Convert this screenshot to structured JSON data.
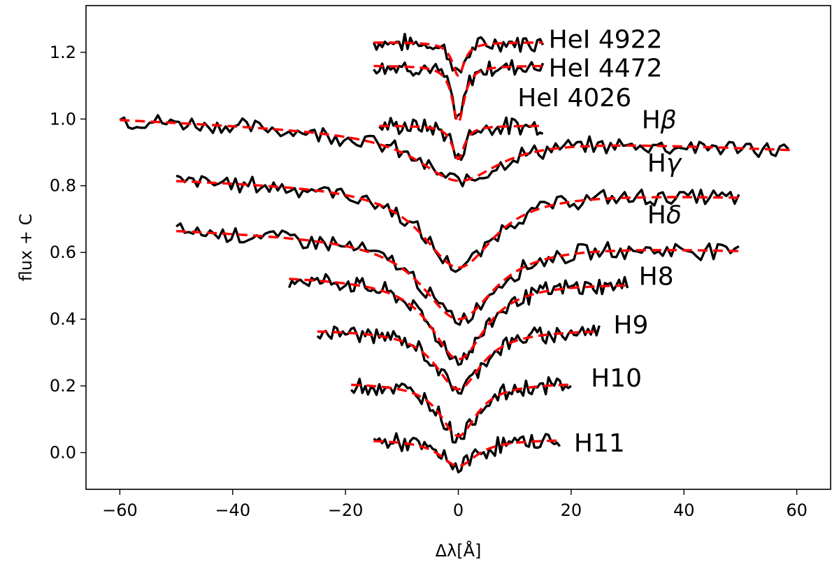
{
  "chart_data": {
    "type": "line",
    "title": "",
    "xlabel": "Δλ[Å]",
    "ylabel": "flux + C",
    "xlim": [
      -66,
      66
    ],
    "ylim": [
      -0.11,
      1.34
    ],
    "xticks": [
      -60,
      -40,
      -20,
      0,
      20,
      40,
      60
    ],
    "xtick_labels": [
      "−60",
      "−40",
      "−20",
      "0",
      "20",
      "40",
      "60"
    ],
    "yticks": [
      0.0,
      0.2,
      0.4,
      0.6,
      0.8,
      1.0,
      1.2
    ],
    "ytick_labels": [
      "0.0",
      "0.2",
      "0.4",
      "0.6",
      "0.8",
      "1.0",
      "1.2"
    ],
    "grid": false,
    "colors": {
      "observed": "#000000",
      "model": "#ff0000"
    },
    "line_styles": {
      "observed": "solid",
      "model": "dashed"
    },
    "series": [
      {
        "label": "HeI 4922",
        "xrange": [
          -15,
          15
        ],
        "continuum": 1.23,
        "depth": 0.1,
        "width": 1.3,
        "label_at": [
          16,
          1.24
        ]
      },
      {
        "label": "HeI 4472",
        "xrange": [
          -15,
          15
        ],
        "continuum": 1.16,
        "depth": 0.17,
        "width": 1.3,
        "label_at": [
          16,
          1.155
        ]
      },
      {
        "label": "HeI 4026",
        "xrange": [
          -14,
          15
        ],
        "continuum": 0.98,
        "depth": 0.1,
        "width": 1.3,
        "label_at": [
          10.5,
          1.065
        ]
      },
      {
        "label": "Hβ",
        "xrange": [
          -60,
          59
        ],
        "continuum": 1.0,
        "depth": 0.14,
        "width": 9.0,
        "tilt": -0.09,
        "label_at": [
          32.5,
          1.0
        ]
      },
      {
        "label": "Hγ",
        "xrange": [
          -50,
          50
        ],
        "continuum": 0.82,
        "depth": 0.24,
        "width": 8.0,
        "tilt": -0.05,
        "label_at": [
          33.5,
          0.87
        ]
      },
      {
        "label": "Hδ",
        "xrange": [
          -50,
          50
        ],
        "continuum": 0.67,
        "depth": 0.24,
        "width": 8.0,
        "tilt": -0.06,
        "label_at": [
          33.5,
          0.715
        ]
      },
      {
        "label": "H8",
        "xrange": [
          -30,
          30
        ],
        "continuum": 0.53,
        "depth": 0.24,
        "width": 6.0,
        "tilt": -0.02,
        "label_at": [
          32,
          0.53
        ]
      },
      {
        "label": "H9",
        "xrange": [
          -25,
          25
        ],
        "continuum": 0.37,
        "depth": 0.18,
        "width": 5.0,
        "label_at": [
          27.5,
          0.385
        ]
      },
      {
        "label": "H10",
        "xrange": [
          -19,
          20
        ],
        "continuum": 0.21,
        "depth": 0.16,
        "width": 4.0,
        "label_at": [
          23.5,
          0.225
        ]
      },
      {
        "label": "H11",
        "xrange": [
          -15,
          18
        ],
        "continuum": 0.04,
        "depth": 0.08,
        "width": 4.0,
        "label_at": [
          20.5,
          0.03
        ]
      }
    ]
  }
}
